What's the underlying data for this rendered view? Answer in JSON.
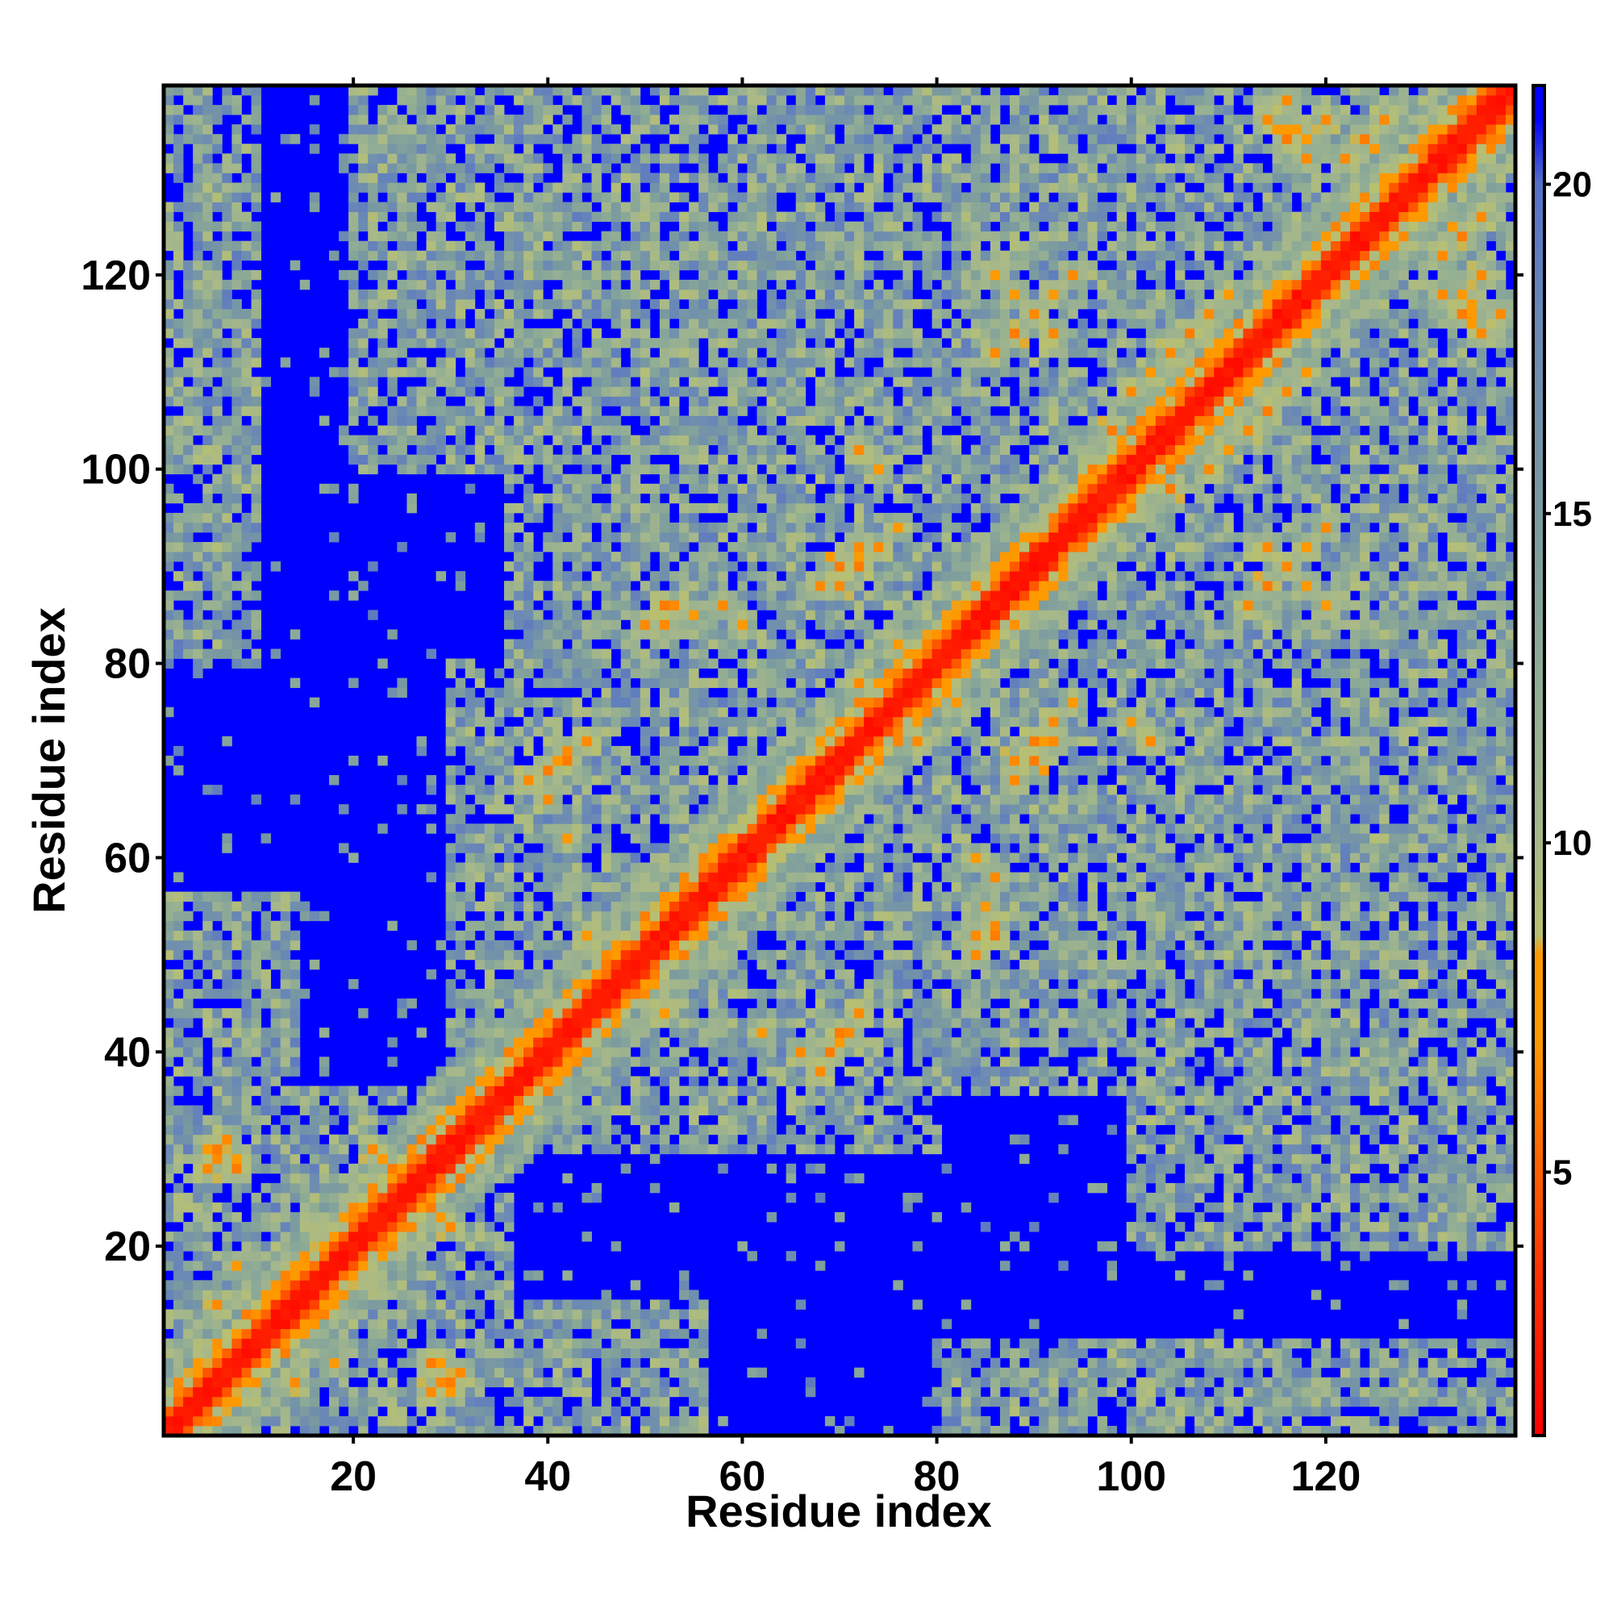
{
  "chart_data": {
    "type": "heatmap",
    "title": "",
    "xlabel": "Residue index",
    "ylabel": "Residue index",
    "n_residues": 139,
    "x_range": [
      1,
      139
    ],
    "y_range": [
      1,
      139
    ],
    "x_ticks": [
      20,
      40,
      60,
      80,
      100,
      120
    ],
    "y_ticks": [
      20,
      40,
      60,
      80,
      100,
      120
    ],
    "colorbar": {
      "range": [
        1,
        21.5
      ],
      "ticks": [
        5,
        10,
        15,
        20
      ],
      "stops": [
        {
          "value": 1.0,
          "color": "#ff0000"
        },
        {
          "value": 3.5,
          "color": "#ff3300"
        },
        {
          "value": 7.0,
          "color": "#ff9900"
        },
        {
          "value": 8.3,
          "color": "#ff9900"
        },
        {
          "value": 8.6,
          "color": "#b8c070"
        },
        {
          "value": 10.0,
          "color": "#a7b88a"
        },
        {
          "value": 12.5,
          "color": "#8fac95"
        },
        {
          "value": 15.0,
          "color": "#7a9aa0"
        },
        {
          "value": 18.0,
          "color": "#6a88b6"
        },
        {
          "value": 20.0,
          "color": "#5570c8"
        },
        {
          "value": 21.0,
          "color": "#0000ff"
        }
      ]
    },
    "contacts": [
      {
        "i": 5,
        "j": 28,
        "d": 6.5
      },
      {
        "i": 6,
        "j": 30,
        "d": 6.0
      },
      {
        "i": 7,
        "j": 31,
        "d": 6.5
      },
      {
        "i": 8,
        "j": 29,
        "d": 7.0
      },
      {
        "i": 14,
        "j": 6,
        "d": 6.5
      },
      {
        "i": 18,
        "j": 8,
        "d": 7.0
      },
      {
        "i": 20,
        "j": 24,
        "d": 6.5
      },
      {
        "i": 22,
        "j": 30,
        "d": 6.5
      },
      {
        "i": 24,
        "j": 28,
        "d": 6.0
      },
      {
        "i": 26,
        "j": 22,
        "d": 6.5
      },
      {
        "i": 28,
        "j": 8,
        "d": 6.0
      },
      {
        "i": 29,
        "j": 6,
        "d": 6.5
      },
      {
        "i": 30,
        "j": 5,
        "d": 7.0
      },
      {
        "i": 29,
        "j": 23,
        "d": 7.0
      },
      {
        "i": 34,
        "j": 36,
        "d": 6.0
      },
      {
        "i": 36,
        "j": 38,
        "d": 6.5
      },
      {
        "i": 38,
        "j": 68,
        "d": 6.5
      },
      {
        "i": 40,
        "j": 69,
        "d": 6.0
      },
      {
        "i": 42,
        "j": 71,
        "d": 6.5
      },
      {
        "i": 44,
        "j": 72,
        "d": 7.0
      },
      {
        "i": 46,
        "j": 49,
        "d": 6.0
      },
      {
        "i": 50,
        "j": 46,
        "d": 6.5
      },
      {
        "i": 52,
        "j": 44,
        "d": 7.0
      },
      {
        "i": 55,
        "j": 56,
        "d": 6.0
      },
      {
        "i": 52,
        "j": 84,
        "d": 6.5
      },
      {
        "i": 53,
        "j": 86,
        "d": 6.5
      },
      {
        "i": 55,
        "j": 85,
        "d": 7.0
      },
      {
        "i": 62,
        "j": 42,
        "d": 7.0
      },
      {
        "i": 66,
        "j": 40,
        "d": 6.5
      },
      {
        "i": 68,
        "j": 38,
        "d": 6.5
      },
      {
        "i": 70,
        "j": 42,
        "d": 6.0
      },
      {
        "i": 72,
        "j": 44,
        "d": 6.5
      },
      {
        "i": 70,
        "j": 88,
        "d": 6.5
      },
      {
        "i": 72,
        "j": 90,
        "d": 6.0
      },
      {
        "i": 74,
        "j": 92,
        "d": 6.5
      },
      {
        "i": 76,
        "j": 94,
        "d": 7.0
      },
      {
        "i": 78,
        "j": 72,
        "d": 6.5
      },
      {
        "i": 82,
        "j": 76,
        "d": 7.0
      },
      {
        "i": 84,
        "j": 50,
        "d": 6.5
      },
      {
        "i": 86,
        "j": 52,
        "d": 6.0
      },
      {
        "i": 88,
        "j": 68,
        "d": 6.5
      },
      {
        "i": 90,
        "j": 70,
        "d": 6.0
      },
      {
        "i": 92,
        "j": 72,
        "d": 6.5
      },
      {
        "i": 96,
        "j": 100,
        "d": 6.5
      },
      {
        "i": 98,
        "j": 104,
        "d": 6.0
      },
      {
        "i": 100,
        "j": 108,
        "d": 6.5
      },
      {
        "i": 102,
        "j": 110,
        "d": 7.0
      },
      {
        "i": 104,
        "j": 112,
        "d": 6.5
      },
      {
        "i": 106,
        "j": 114,
        "d": 6.0
      },
      {
        "i": 108,
        "j": 116,
        "d": 6.5
      },
      {
        "i": 110,
        "j": 118,
        "d": 7.0
      },
      {
        "i": 112,
        "j": 86,
        "d": 6.5
      },
      {
        "i": 114,
        "j": 88,
        "d": 6.0
      },
      {
        "i": 116,
        "j": 90,
        "d": 6.5
      },
      {
        "i": 118,
        "j": 92,
        "d": 7.0
      },
      {
        "i": 120,
        "j": 94,
        "d": 6.5
      },
      {
        "i": 122,
        "j": 132,
        "d": 6.5
      },
      {
        "i": 124,
        "j": 134,
        "d": 6.0
      },
      {
        "i": 126,
        "j": 136,
        "d": 6.5
      },
      {
        "i": 128,
        "j": 124,
        "d": 6.5
      },
      {
        "i": 130,
        "j": 126,
        "d": 7.0
      },
      {
        "i": 132,
        "j": 118,
        "d": 6.5
      },
      {
        "i": 134,
        "j": 116,
        "d": 6.0
      },
      {
        "i": 136,
        "j": 114,
        "d": 6.5
      },
      {
        "i": 120,
        "j": 136,
        "d": 6.5
      },
      {
        "i": 118,
        "j": 134,
        "d": 7.0
      },
      {
        "i": 116,
        "j": 138,
        "d": 6.5
      },
      {
        "i": 88,
        "j": 118,
        "d": 7.0
      },
      {
        "i": 90,
        "j": 116,
        "d": 6.5
      },
      {
        "i": 92,
        "j": 114,
        "d": 6.5
      },
      {
        "i": 86,
        "j": 120,
        "d": 7.0
      },
      {
        "i": 84,
        "j": 60,
        "d": 7.0
      },
      {
        "i": 86,
        "j": 58,
        "d": 6.5
      },
      {
        "i": 100,
        "j": 74,
        "d": 7.0
      },
      {
        "i": 102,
        "j": 72,
        "d": 6.5
      }
    ],
    "near_regions": [
      {
        "i_range": [
          1,
          36
        ],
        "j_range": [
          1,
          36
        ]
      },
      {
        "i_range": [
          1,
          10
        ],
        "j_range": [
          90,
          138
        ]
      },
      {
        "i_range": [
          30,
          80
        ],
        "j_range": [
          30,
          80
        ]
      },
      {
        "i_range": [
          36,
          72
        ],
        "j_range": [
          64,
          92
        ]
      },
      {
        "i_range": [
          60,
          102
        ],
        "j_range": [
          60,
          102
        ]
      },
      {
        "i_range": [
          72,
          139
        ],
        "j_range": [
          72,
          139
        ]
      },
      {
        "i_range": [
          40,
          60
        ],
        "j_range": [
          100,
          122
        ]
      },
      {
        "i_range": [
          10,
          56
        ],
        "j_range": [
          1,
          14
        ]
      },
      {
        "i_range": [
          80,
          139
        ],
        "j_range": [
          1,
          10
        ]
      },
      {
        "i_range": [
          85,
          139
        ],
        "j_range": [
          36,
          72
        ]
      },
      {
        "i_range": [
          100,
          139
        ],
        "j_range": [
          20,
          46
        ]
      }
    ]
  }
}
